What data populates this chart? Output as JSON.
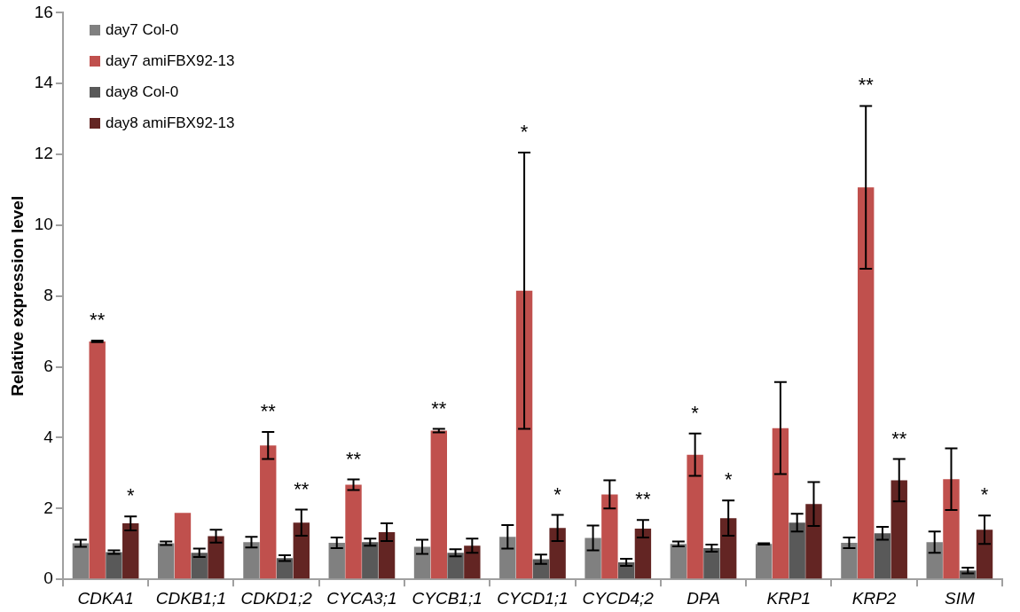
{
  "chart_data": {
    "type": "bar",
    "ylabel": "Relative expression level",
    "categories": [
      "CDKA1",
      "CDKB1;1",
      "CDKD1;2",
      "CYCA3;1",
      "CYCB1;1",
      "CYCD1;1",
      "CYCD4;2",
      "DPA",
      "KRP1",
      "KRP2",
      "SIM"
    ],
    "series": [
      {
        "name": "day7 Col-0",
        "color": "#808080",
        "values": [
          1.02,
          1.02,
          1.05,
          1.03,
          0.92,
          1.2,
          1.17,
          1.0,
          1.0,
          1.03,
          1.05
        ],
        "errors": [
          0.1,
          0.05,
          0.15,
          0.15,
          0.2,
          0.33,
          0.35,
          0.07,
          0.02,
          0.15,
          0.3
        ]
      },
      {
        "name": "day7 amiFBX92-13",
        "color": "#c0504d",
        "values": [
          6.72,
          1.88,
          3.78,
          2.67,
          4.2,
          8.15,
          2.4,
          3.52,
          4.27,
          11.07,
          2.83
        ],
        "errors": [
          0.02,
          null,
          0.38,
          0.15,
          0.05,
          3.9,
          0.4,
          0.6,
          1.3,
          2.3,
          0.87
        ]
      },
      {
        "name": "day8 Col-0",
        "color": "#595959",
        "values": [
          0.77,
          0.75,
          0.6,
          1.05,
          0.75,
          0.57,
          0.48,
          0.88,
          1.6,
          1.3,
          0.25
        ],
        "errors": [
          0.05,
          0.12,
          0.08,
          0.1,
          0.1,
          0.13,
          0.1,
          0.1,
          0.25,
          0.18,
          0.08
        ]
      },
      {
        "name": "day8 amiFBX92-13",
        "color": "#632523",
        "values": [
          1.58,
          1.22,
          1.6,
          1.33,
          0.95,
          1.45,
          1.43,
          1.73,
          2.13,
          2.8,
          1.4
        ],
        "errors": [
          0.2,
          0.18,
          0.37,
          0.25,
          0.2,
          0.37,
          0.25,
          0.5,
          0.62,
          0.6,
          0.4
        ]
      }
    ],
    "ylim": [
      0,
      16
    ],
    "yticks": [
      0,
      2,
      4,
      6,
      8,
      10,
      12,
      14,
      16
    ],
    "grid": false,
    "legend": "top left",
    "annotations": [
      {
        "text": "**",
        "x": "CDKA1",
        "y": 6.74
      },
      {
        "text": "*",
        "x": "CDKA1",
        "y": 1.78
      },
      {
        "text": "**",
        "x": "CDKD1;2",
        "y": 4.16
      },
      {
        "text": "**",
        "x": "CDKD1;2",
        "y": 1.97
      },
      {
        "text": "**",
        "x": "CYCA3;1",
        "y": 2.82
      },
      {
        "text": "**",
        "x": "CYCB1;1",
        "y": 4.25
      },
      {
        "text": "*",
        "x": "CYCD1;1",
        "y": 12.05
      },
      {
        "text": "*",
        "x": "CYCD1;1",
        "y": 1.82
      },
      {
        "text": "**",
        "x": "CYCD4;2",
        "y": 1.68
      },
      {
        "text": "*",
        "x": "DPA",
        "y": 4.12
      },
      {
        "text": "*",
        "x": "DPA",
        "y": 2.23
      },
      {
        "text": "**",
        "x": "KRP2",
        "y": 13.37
      },
      {
        "text": "**",
        "x": "KRP2",
        "y": 3.4
      },
      {
        "text": "*",
        "x": "SIM",
        "y": 1.8
      }
    ]
  }
}
